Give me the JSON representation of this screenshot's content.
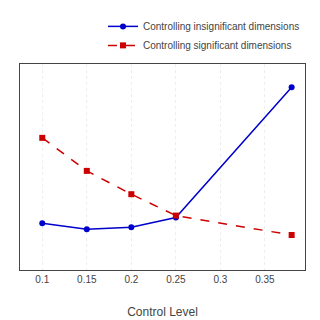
{
  "chart_data": {
    "type": "line",
    "xlabel": "Control Level",
    "xlim": [
      0.075,
      0.395
    ],
    "xticks": [
      0.1,
      0.15,
      0.2,
      0.25,
      0.3,
      0.35
    ],
    "ylim": [
      0.22,
      0.75
    ],
    "yticks": [],
    "tick_labels": "x",
    "grid": true,
    "legend": "upper right",
    "series": [
      {
        "name": "Controlling insignificant dimensions",
        "color": "#0000cc",
        "marker": "circle",
        "line_style": "solid",
        "x": [
          0.1,
          0.15,
          0.2,
          0.25,
          0.38
        ],
        "values": [
          0.34,
          0.325,
          0.33,
          0.355,
          0.69
        ]
      },
      {
        "name": "Controlling significant dimensions",
        "color": "#cc0000",
        "marker": "square",
        "line_style": "dashed",
        "x": [
          0.1,
          0.15,
          0.2,
          0.25,
          0.38
        ],
        "values": [
          0.56,
          0.475,
          0.415,
          0.36,
          0.31
        ]
      }
    ]
  }
}
